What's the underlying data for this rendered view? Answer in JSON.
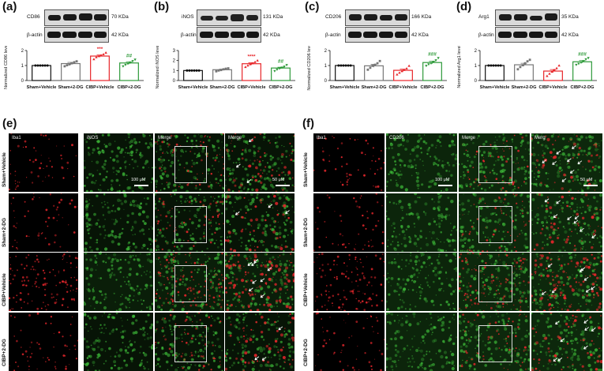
{
  "panels": {
    "a": {
      "letter": "(a)",
      "marker": "CD86",
      "marker_kda": "70 KDa",
      "actin": "β-actin",
      "actin_kda": "42 KDa"
    },
    "b": {
      "letter": "(b)",
      "marker": "iNOS",
      "marker_kda": "131 KDa",
      "actin": "β-actin",
      "actin_kda": "42 KDa"
    },
    "c": {
      "letter": "(c)",
      "marker": "CD206",
      "marker_kda": "166 KDa",
      "actin": "β-actin",
      "actin_kda": "42 KDa"
    },
    "d": {
      "letter": "(d)",
      "marker": "Arg1",
      "marker_kda": "35 KDa",
      "actin": "β-actin",
      "actin_kda": "42 KDa"
    },
    "e": {
      "letter": "(e)",
      "columns": [
        "Iba1",
        "iNOS",
        "Merge",
        "Merge"
      ],
      "scale_100": "100 μM",
      "scale_50": "50 μM"
    },
    "f": {
      "letter": "(f)",
      "columns": [
        "Iba1",
        "CD206",
        "Merge",
        "Merg"
      ],
      "scale_100": "100 μM",
      "scale_50": "50 μM"
    }
  },
  "groups": [
    "Sham+Vehicle",
    "Sham+2-DG",
    "CIBP+Vehicle",
    "CIBP+2-DG"
  ],
  "colors": {
    "sham_vehicle": "#111111",
    "sham_2dg": "#777777",
    "cibp_vehicle": "#e8262a",
    "cibp_2dg": "#2e9a3a",
    "iba1": "#e3262b",
    "marker_green": "#3fbf3a"
  },
  "chart_data": [
    {
      "type": "bar",
      "ylabel": "Normalized CD86 levels",
      "ylim": [
        0,
        2
      ],
      "yticks": [
        "0",
        "1",
        "2"
      ],
      "categories": [
        "Sham+Vehicle",
        "Sham+2-DG",
        "CIBP+Vehicle",
        "CIBP+2-DG"
      ],
      "values": [
        1.0,
        1.13,
        1.63,
        1.17
      ],
      "errors": [
        0.0,
        0.08,
        0.07,
        0.08
      ],
      "points": [
        [
          1,
          1,
          1,
          1,
          1,
          1
        ],
        [
          0.95,
          1.02,
          1.08,
          1.15,
          1.22,
          1.28
        ],
        [
          1.42,
          1.55,
          1.62,
          1.68,
          1.75,
          1.85
        ],
        [
          0.95,
          1.05,
          1.12,
          1.2,
          1.3,
          1.4
        ]
      ],
      "annotations": [
        {
          "category": "CIBP+Vehicle",
          "text": "***",
          "color": "#e8262a"
        },
        {
          "category": "CIBP+2-DG",
          "text": "##",
          "color": "#2e9a3a"
        }
      ]
    },
    {
      "type": "bar",
      "ylabel": "Normalized iNOS levels",
      "ylim": [
        0,
        3
      ],
      "yticks": [
        "0",
        "1",
        "2",
        "3"
      ],
      "categories": [
        "Sham+Vehicle",
        "Sham+2-DG",
        "CIBP+Vehicle",
        "CIBP+2-DG"
      ],
      "values": [
        1.0,
        1.08,
        1.68,
        1.25
      ],
      "errors": [
        0.0,
        0.06,
        0.1,
        0.08
      ],
      "points": [
        [
          1,
          1,
          1,
          1,
          1,
          1
        ],
        [
          0.92,
          1.0,
          1.05,
          1.12,
          1.18,
          1.22
        ],
        [
          1.35,
          1.5,
          1.62,
          1.72,
          1.85,
          2.0
        ],
        [
          0.95,
          1.1,
          1.2,
          1.3,
          1.4,
          1.55
        ]
      ],
      "annotations": [
        {
          "category": "CIBP+Vehicle",
          "text": "****",
          "color": "#e8262a"
        },
        {
          "category": "CIBP+2-DG",
          "text": "##",
          "color": "#2e9a3a"
        }
      ]
    },
    {
      "type": "bar",
      "ylabel": "Normalized CD206 levels",
      "ylim": [
        0,
        2
      ],
      "yticks": [
        "0",
        "1",
        "2"
      ],
      "categories": [
        "Sham+Vehicle",
        "Sham+2-DG",
        "CIBP+Vehicle",
        "CIBP+2-DG"
      ],
      "values": [
        1.0,
        0.98,
        0.68,
        1.2
      ],
      "errors": [
        0.0,
        0.1,
        0.08,
        0.08
      ],
      "points": [
        [
          1,
          1,
          1,
          1,
          1,
          1
        ],
        [
          0.72,
          0.85,
          0.98,
          1.05,
          1.15,
          1.3
        ],
        [
          0.4,
          0.52,
          0.62,
          0.7,
          0.8,
          0.98
        ],
        [
          0.98,
          1.08,
          1.15,
          1.25,
          1.35,
          1.5
        ]
      ],
      "annotations": [
        {
          "category": "CIBP+2-DG",
          "text": "###",
          "color": "#2e9a3a"
        }
      ]
    },
    {
      "type": "bar",
      "ylabel": "Normalized Arg1 levels",
      "ylim": [
        0,
        2
      ],
      "yticks": [
        "0",
        "1",
        "2"
      ],
      "categories": [
        "Sham+Vehicle",
        "Sham+2-DG",
        "CIBP+Vehicle",
        "CIBP+2-DG"
      ],
      "values": [
        1.0,
        1.05,
        0.63,
        1.25
      ],
      "errors": [
        0.0,
        0.1,
        0.1,
        0.08
      ],
      "points": [
        [
          1,
          1,
          1,
          1,
          1,
          1
        ],
        [
          0.75,
          0.9,
          1.02,
          1.15,
          1.28,
          1.38
        ],
        [
          0.3,
          0.45,
          0.58,
          0.7,
          0.82,
          1.0
        ],
        [
          1.05,
          1.12,
          1.2,
          1.3,
          1.42,
          1.5
        ]
      ],
      "annotations": [
        {
          "category": "CIBP+2-DG",
          "text": "###",
          "color": "#2e9a3a"
        }
      ]
    }
  ]
}
